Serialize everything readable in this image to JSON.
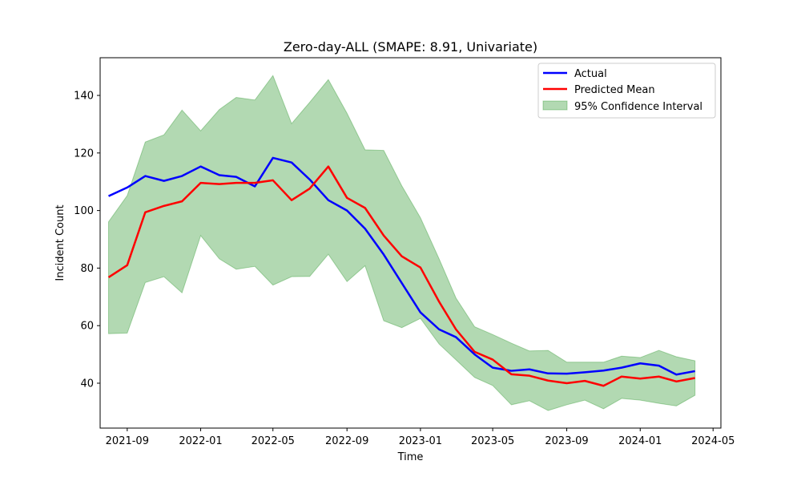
{
  "chart_data": {
    "type": "line",
    "title": "Zero-day-ALL (SMAPE: 8.91, Univariate)",
    "xlabel": "Time",
    "ylabel": "Incident Count",
    "x_tick_labels": [
      "2021-09",
      "2022-01",
      "2022-05",
      "2022-09",
      "2023-01",
      "2023-05",
      "2023-09",
      "2024-01",
      "2024-05"
    ],
    "y_ticks": [
      40,
      60,
      80,
      100,
      120,
      140
    ],
    "ylim": [
      24.4,
      153.1
    ],
    "xlim": [
      "2021-07-18",
      "2024-05-14"
    ],
    "grid": false,
    "legend_position": "upper right",
    "x": [
      "2021-08-01",
      "2021-09-01",
      "2021-10-01",
      "2021-11-01",
      "2021-12-01",
      "2022-01-01",
      "2022-02-01",
      "2022-03-01",
      "2022-04-01",
      "2022-05-01",
      "2022-06-01",
      "2022-07-01",
      "2022-08-01",
      "2022-09-01",
      "2022-10-01",
      "2022-11-01",
      "2022-12-01",
      "2023-01-01",
      "2023-02-01",
      "2023-03-01",
      "2023-04-01",
      "2023-05-01",
      "2023-06-01",
      "2023-07-01",
      "2023-08-01",
      "2023-09-01",
      "2023-10-01",
      "2023-11-01",
      "2023-12-01",
      "2024-01-01",
      "2024-02-01",
      "2024-03-01",
      "2024-04-01"
    ],
    "series": [
      {
        "name": "Actual",
        "color": "#0000ff",
        "values": [
          105,
          108,
          112,
          110.3,
          112,
          115.3,
          112.3,
          111.7,
          108.4,
          118.3,
          116.7,
          110.8,
          103.6,
          100,
          93.7,
          84.7,
          74.8,
          64.6,
          58.7,
          56,
          50,
          45.4,
          44.3,
          44.8,
          43.4,
          43.3,
          43.8,
          44.4,
          45.4,
          46.9,
          46.1,
          43,
          44.2
        ]
      },
      {
        "name": "Predicted Mean",
        "color": "#ff0000",
        "values": [
          76.8,
          81,
          99.4,
          101.6,
          103.2,
          109.6,
          109.2,
          109.6,
          109.6,
          110.5,
          103.6,
          107.6,
          115.3,
          104.4,
          100.9,
          91.3,
          84.1,
          80.2,
          68.3,
          58.7,
          50.9,
          48.2,
          43.1,
          42.6,
          40.9,
          40,
          40.8,
          39.1,
          42.3,
          41.6,
          42.3,
          40.6,
          41.8
        ]
      }
    ],
    "confidence_interval": {
      "name": "95% Confidence Interval",
      "color": "#008000",
      "upper": [
        96.1,
        105.2,
        123.8,
        126.3,
        134.9,
        127.7,
        135.1,
        139.3,
        138.4,
        146.9,
        130.2,
        137.6,
        145.5,
        133.8,
        121.1,
        120.9,
        108.6,
        97.5,
        83.2,
        69.6,
        59.6,
        56.9,
        53.9,
        51.2,
        51.4,
        47.3,
        47.3,
        47.3,
        49.4,
        48.9,
        51.4,
        49.2,
        47.8
      ],
      "lower": [
        57.2,
        57.4,
        75,
        77,
        71.4,
        91.3,
        83.2,
        79.6,
        80.6,
        74.1,
        77,
        77.1,
        84.8,
        75.3,
        80.8,
        61.7,
        59.3,
        62.5,
        53.6,
        48.1,
        42,
        39.2,
        32.5,
        33.9,
        30.5,
        32.5,
        34.1,
        31.1,
        34.7,
        34.1,
        33,
        32.1,
        35.8
      ]
    }
  }
}
